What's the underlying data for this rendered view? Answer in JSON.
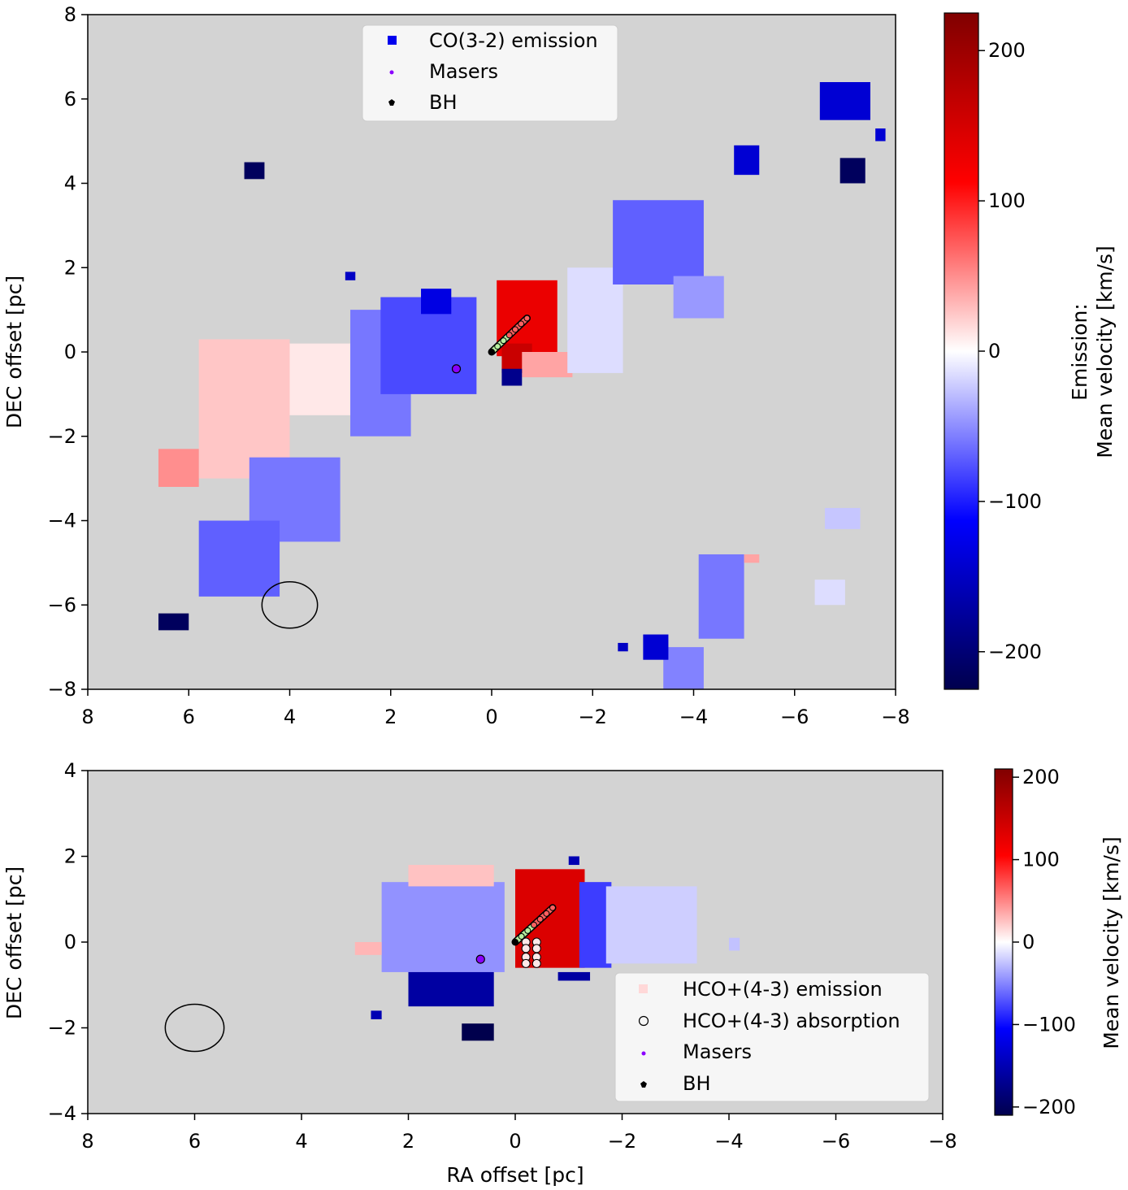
{
  "colors": {
    "background_map": "#d3d3d3",
    "masers": "#8b00ff",
    "bh": "#000000",
    "legend_co": "#0000ee",
    "legend_hco_emission": "#ffd8d8"
  },
  "chart_data": [
    {
      "type": "heatmap",
      "panel": "top",
      "xlabel": "",
      "ylabel": "DEC offset [pc]",
      "xlim": [
        8,
        -8
      ],
      "ylim": [
        -8,
        8
      ],
      "xticks": [
        "8",
        "6",
        "4",
        "2",
        "0",
        "−2",
        "−4",
        "−6",
        "−8"
      ],
      "yticks": [
        "−8",
        "−6",
        "−4",
        "−2",
        "0",
        "2",
        "4",
        "6",
        "8"
      ],
      "colorbar": {
        "label_line1": "Emission:",
        "label_line2": "Mean velocity [km/s]",
        "range": [
          -225,
          225
        ],
        "ticks": [
          "200",
          "100",
          "0",
          "−100",
          "−200"
        ],
        "tick_values": [
          200,
          100,
          0,
          -100,
          -200
        ]
      },
      "legend": {
        "position": "top-center",
        "entries": [
          "CO(3-2) emission",
          "Masers",
          "BH"
        ]
      },
      "beam": {
        "ra": 4.0,
        "dec": -6.0,
        "width_pc": 1.1,
        "height_pc": 1.1
      },
      "bh": {
        "ra": -0.7,
        "dec": 0.8
      },
      "masers_extra": {
        "ra": 0.7,
        "dec": -0.4
      },
      "regions": [
        {
          "ra": [
            5.8,
            4.0
          ],
          "dec": [
            -3.0,
            0.3
          ],
          "velocity": 25
        },
        {
          "ra": [
            6.6,
            5.8
          ],
          "dec": [
            -3.2,
            -2.3
          ],
          "velocity": 50
        },
        {
          "ra": [
            4.0,
            2.8
          ],
          "dec": [
            -1.5,
            0.2
          ],
          "velocity": 10
        },
        {
          "ra": [
            2.8,
            1.6
          ],
          "dec": [
            -2.0,
            1.0
          ],
          "velocity": -60
        },
        {
          "ra": [
            2.2,
            0.3
          ],
          "dec": [
            -1.0,
            1.3
          ],
          "velocity": -80
        },
        {
          "ra": [
            1.4,
            0.8
          ],
          "dec": [
            0.9,
            1.5
          ],
          "velocity": -130
        },
        {
          "ra": [
            4.8,
            3.0
          ],
          "dec": [
            -4.5,
            -2.5
          ],
          "velocity": -60
        },
        {
          "ra": [
            5.8,
            4.2
          ],
          "dec": [
            -5.8,
            -4.0
          ],
          "velocity": -70
        },
        {
          "ra": [
            -0.1,
            -1.3
          ],
          "dec": [
            -0.1,
            1.7
          ],
          "velocity": 130
        },
        {
          "ra": [
            -0.2,
            -0.8
          ],
          "dec": [
            -0.5,
            0.2
          ],
          "velocity": 160
        },
        {
          "ra": [
            -0.6,
            -1.6
          ],
          "dec": [
            -0.6,
            0.0
          ],
          "velocity": 40
        },
        {
          "ra": [
            -1.5,
            -2.6
          ],
          "dec": [
            -0.5,
            2.0
          ],
          "velocity": -15
        },
        {
          "ra": [
            -2.4,
            -4.2
          ],
          "dec": [
            1.6,
            3.6
          ],
          "velocity": -70
        },
        {
          "ra": [
            -3.6,
            -4.6
          ],
          "dec": [
            0.8,
            1.8
          ],
          "velocity": -45
        },
        {
          "ra": [
            -4.1,
            -5.0
          ],
          "dec": [
            -6.8,
            -4.8
          ],
          "velocity": -60
        },
        {
          "ra": [
            -3.4,
            -4.2
          ],
          "dec": [
            -8.0,
            -7.0
          ],
          "velocity": -55
        },
        {
          "ra": [
            -6.6,
            -7.3
          ],
          "dec": [
            -4.2,
            -3.7
          ],
          "velocity": -25
        },
        {
          "ra": [
            -6.4,
            -7.0
          ],
          "dec": [
            -6.0,
            -5.4
          ],
          "velocity": -15
        },
        {
          "ra": [
            -5.0,
            -5.3
          ],
          "dec": [
            -5.0,
            -4.8
          ],
          "velocity": 40
        },
        {
          "ra": [
            -6.5,
            -7.5
          ],
          "dec": [
            5.5,
            6.4
          ],
          "velocity": -140
        },
        {
          "ra": [
            -4.8,
            -5.3
          ],
          "dec": [
            4.2,
            4.9
          ],
          "velocity": -140
        },
        {
          "ra": [
            -7.6,
            -7.8
          ],
          "dec": [
            5.0,
            5.3
          ],
          "velocity": -140
        },
        {
          "ra": [
            -6.9,
            -7.4
          ],
          "dec": [
            4.0,
            4.6
          ],
          "velocity": -215
        },
        {
          "ra": [
            4.9,
            4.5
          ],
          "dec": [
            4.1,
            4.5
          ],
          "velocity": -215
        },
        {
          "ra": [
            6.6,
            6.0
          ],
          "dec": [
            -6.6,
            -6.2
          ],
          "velocity": -215
        },
        {
          "ra": [
            2.9,
            2.7
          ],
          "dec": [
            1.7,
            1.9
          ],
          "velocity": -150
        },
        {
          "ra": [
            -0.2,
            -0.6
          ],
          "dec": [
            -0.8,
            -0.4
          ],
          "velocity": -185
        },
        {
          "ra": [
            -2.5,
            -2.7
          ],
          "dec": [
            -7.1,
            -6.9
          ],
          "velocity": -150
        },
        {
          "ra": [
            -3.0,
            -3.5
          ],
          "dec": [
            -7.3,
            -6.7
          ],
          "velocity": -140
        }
      ]
    },
    {
      "type": "heatmap",
      "panel": "bottom",
      "xlabel": "RA offset [pc]",
      "ylabel": "DEC offset [pc]",
      "xlim": [
        8,
        -8
      ],
      "ylim": [
        -4,
        4
      ],
      "xticks": [
        "8",
        "6",
        "4",
        "2",
        "0",
        "−2",
        "−4",
        "−6",
        "−8"
      ],
      "yticks": [
        "−4",
        "−2",
        "0",
        "2",
        "4"
      ],
      "colorbar": {
        "label": "Mean velocity [km/s]",
        "range": [
          -210,
          210
        ],
        "ticks": [
          "200",
          "100",
          "0",
          "−100",
          "−200"
        ],
        "tick_values": [
          200,
          100,
          0,
          -100,
          -200
        ]
      },
      "legend": {
        "position": "lower-right",
        "entries": [
          "HCO+(4-3) emission",
          "HCO+(4-3) absorption",
          "Masers",
          "BH"
        ]
      },
      "beam": {
        "ra": 6.0,
        "dec": -2.0,
        "width_pc": 1.1,
        "height_pc": 1.1
      },
      "bh": {
        "ra": -0.7,
        "dec": 0.8
      },
      "masers_extra": {
        "ra": 0.65,
        "dec": -0.4
      },
      "absorption_points": [
        {
          "ra": -0.2,
          "dec": 0.0
        },
        {
          "ra": -0.4,
          "dec": 0.0
        },
        {
          "ra": -0.2,
          "dec": -0.15
        },
        {
          "ra": -0.4,
          "dec": -0.15
        },
        {
          "ra": -0.2,
          "dec": -0.35
        },
        {
          "ra": -0.4,
          "dec": -0.35
        },
        {
          "ra": -0.2,
          "dec": -0.5
        },
        {
          "ra": -0.4,
          "dec": -0.5
        }
      ],
      "regions": [
        {
          "ra": [
            2.5,
            0.2
          ],
          "dec": [
            -0.7,
            1.4
          ],
          "velocity": -45
        },
        {
          "ra": [
            3.0,
            2.5
          ],
          "dec": [
            -0.3,
            0.0
          ],
          "velocity": 30
        },
        {
          "ra": [
            2.0,
            0.4
          ],
          "dec": [
            1.3,
            1.8
          ],
          "velocity": 25
        },
        {
          "ra": [
            2.0,
            0.4
          ],
          "dec": [
            -1.5,
            -0.7
          ],
          "velocity": -160
        },
        {
          "ra": [
            1.0,
            0.4
          ],
          "dec": [
            -2.3,
            -1.9
          ],
          "velocity": -215
        },
        {
          "ra": [
            2.7,
            2.5
          ],
          "dec": [
            -1.8,
            -1.6
          ],
          "velocity": -150
        },
        {
          "ra": [
            0.0,
            -1.3
          ],
          "dec": [
            -0.6,
            1.7
          ],
          "velocity": 135
        },
        {
          "ra": [
            -1.2,
            -1.8
          ],
          "dec": [
            -0.6,
            1.4
          ],
          "velocity": -80
        },
        {
          "ra": [
            -1.7,
            -3.4
          ],
          "dec": [
            -0.5,
            1.3
          ],
          "velocity": -20
        },
        {
          "ra": [
            -0.8,
            -1.4
          ],
          "dec": [
            -0.9,
            -0.7
          ],
          "velocity": -160
        },
        {
          "ra": [
            -1.0,
            -1.2
          ],
          "dec": [
            1.8,
            2.0
          ],
          "velocity": -150
        },
        {
          "ra": [
            -4.0,
            -4.2
          ],
          "dec": [
            -0.2,
            0.1
          ],
          "velocity": -25
        }
      ]
    }
  ]
}
